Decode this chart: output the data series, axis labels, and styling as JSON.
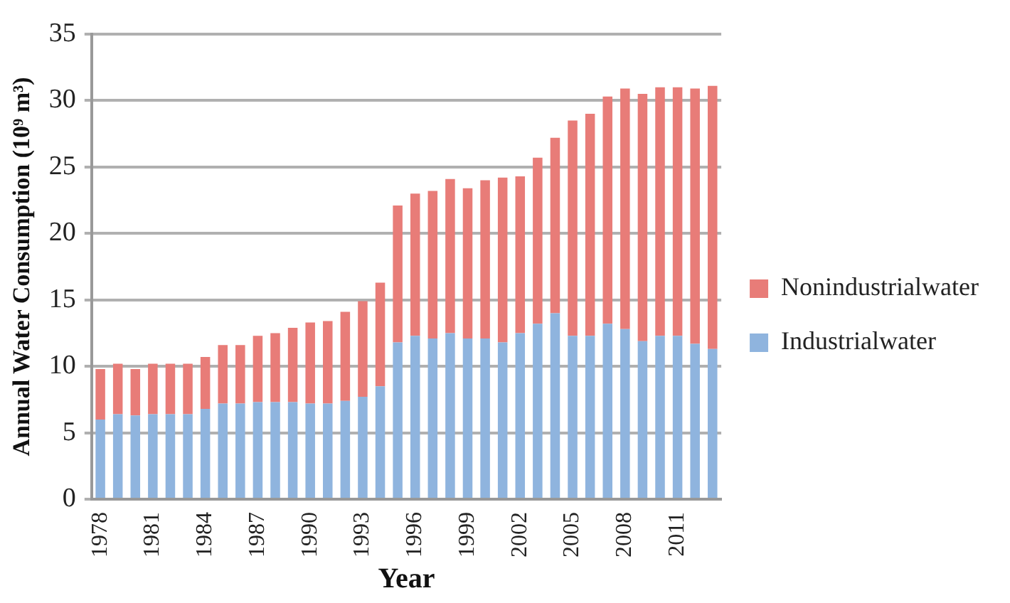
{
  "chart_data": {
    "type": "bar",
    "stacked": true,
    "xlabel": "Year",
    "ylabel": "Annual Water Consumption (10⁹ m³)",
    "categories": [
      "1978",
      null,
      null,
      "1981",
      null,
      null,
      "1984",
      null,
      null,
      "1987",
      null,
      null,
      "1990",
      null,
      null,
      "1993",
      null,
      null,
      "1996",
      null,
      null,
      "1999",
      null,
      null,
      "2002",
      null,
      null,
      "2005",
      null,
      null,
      "2008",
      null,
      null,
      "2011",
      null,
      null
    ],
    "series": [
      {
        "name": "Industrialwater",
        "color": "#8fb4de",
        "values": [
          6.0,
          6.4,
          6.3,
          6.4,
          6.4,
          6.4,
          6.8,
          7.2,
          7.2,
          7.3,
          7.3,
          7.3,
          7.2,
          7.2,
          7.4,
          7.7,
          8.5,
          11.8,
          12.3,
          12.1,
          12.5,
          12.1,
          12.1,
          11.8,
          12.5,
          13.2,
          14.0,
          12.3,
          12.3,
          13.2,
          12.8,
          11.9,
          12.3,
          12.3,
          11.7,
          11.3
        ]
      },
      {
        "name": "Nonindustrialwater",
        "color": "#e87c78",
        "values": [
          3.8,
          3.8,
          3.5,
          3.8,
          3.8,
          3.8,
          3.9,
          4.4,
          4.4,
          5.0,
          5.2,
          5.6,
          6.1,
          6.2,
          6.7,
          7.2,
          7.8,
          10.3,
          10.7,
          11.1,
          11.6,
          11.3,
          11.9,
          12.4,
          11.8,
          12.5,
          13.2,
          16.2,
          16.7,
          17.1,
          18.1,
          18.6,
          18.7,
          18.7,
          19.2,
          19.8
        ]
      }
    ],
    "ylim": [
      0,
      35
    ],
    "yticks": [
      0,
      5,
      10,
      15,
      20,
      25,
      30,
      35
    ],
    "grid": "y",
    "legend": "right"
  }
}
